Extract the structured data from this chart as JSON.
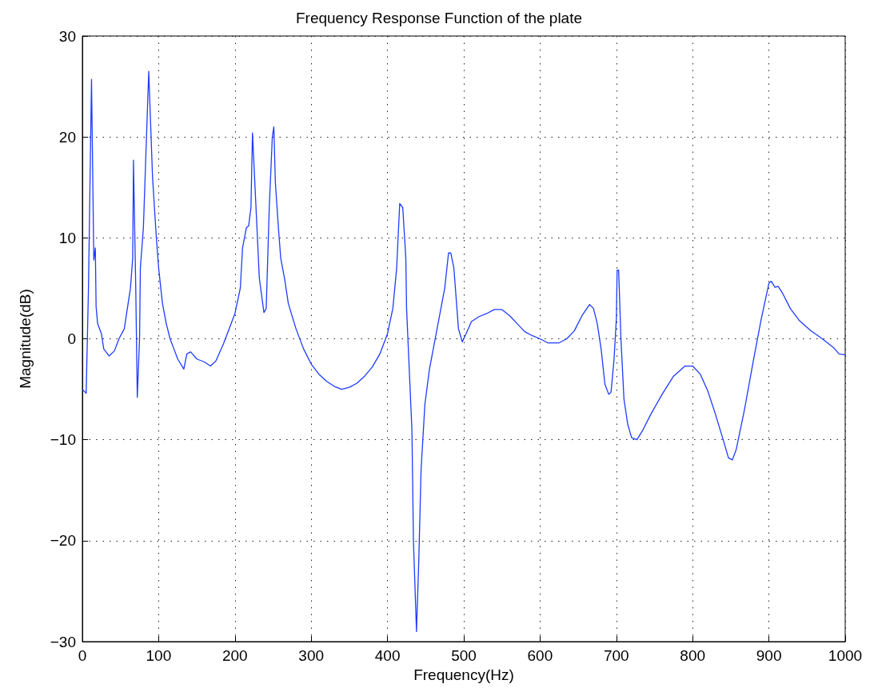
{
  "chart_data": {
    "type": "line",
    "title": "Frequency Response Function of the plate",
    "xlabel": "Frequency(Hz)",
    "ylabel": "Magnitude(dB)",
    "xlim": [
      0,
      1000
    ],
    "xticks": [
      0,
      100,
      200,
      300,
      400,
      500,
      600,
      700,
      800,
      900,
      1000
    ],
    "ylim": [
      -30,
      30
    ],
    "yticks": [
      -30,
      -20,
      -10,
      0,
      10,
      20,
      30
    ],
    "grid": true,
    "line_style": "solid",
    "marker": "none",
    "series": [
      {
        "color": "#1f3bff",
        "x": [
          0,
          5,
          8,
          12,
          15,
          17,
          18,
          20,
          25,
          28,
          35,
          42,
          48,
          55,
          58,
          63,
          66,
          67,
          70,
          72,
          75,
          76,
          80,
          87,
          92,
          97,
          100,
          105,
          110,
          115,
          120,
          125,
          133,
          137,
          142,
          150,
          160,
          168,
          175,
          185,
          195,
          200,
          207,
          210,
          215,
          218,
          221,
          223,
          227,
          232,
          238,
          241,
          245,
          249,
          251,
          253,
          257,
          260,
          265,
          270,
          280,
          290,
          300,
          310,
          320,
          330,
          340,
          350,
          360,
          370,
          380,
          390,
          400,
          407,
          412,
          416,
          420,
          424,
          425,
          432,
          434,
          438,
          441,
          444,
          449,
          455,
          460,
          465,
          470,
          475,
          480,
          483,
          487,
          490,
          493,
          498,
          503,
          510,
          520,
          530,
          540,
          550,
          560,
          570,
          580,
          590,
          600,
          610,
          625,
          635,
          645,
          655,
          665,
          670,
          675,
          680,
          685,
          690,
          693,
          697,
          700,
          701,
          703,
          706,
          710,
          715,
          720,
          727,
          735,
          745,
          760,
          775,
          790,
          800,
          810,
          820,
          830,
          840,
          847,
          852,
          857,
          868,
          880,
          890,
          900,
          903,
          908,
          912,
          918,
          928,
          940,
          955,
          970,
          985,
          992,
          1000
        ],
        "values": [
          -5,
          -5.4,
          5,
          25.7,
          7.8,
          9,
          3.2,
          1.5,
          0.5,
          -1,
          -1.7,
          -1.2,
          0,
          1,
          2.5,
          5,
          8,
          17.7,
          5,
          -5.8,
          0,
          7,
          11,
          26.5,
          16,
          10,
          7,
          3.5,
          1.5,
          0,
          -1,
          -2,
          -3,
          -1.5,
          -1.3,
          -2,
          -2.3,
          -2.7,
          -2.2,
          -0.5,
          1.5,
          2.5,
          5,
          9,
          11,
          11.2,
          13,
          20.4,
          14,
          6,
          2.6,
          3,
          13,
          20,
          21,
          15.5,
          11,
          8,
          6,
          3.5,
          1,
          -1,
          -2.5,
          -3.5,
          -4.2,
          -4.7,
          -5,
          -4.8,
          -4.4,
          -3.7,
          -2.8,
          -1.5,
          0.5,
          3,
          7,
          13.4,
          13,
          8,
          3,
          -9,
          -20,
          -29,
          -22,
          -13,
          -6.5,
          -3,
          -1,
          1,
          3,
          5,
          8.5,
          8.5,
          7,
          4,
          1,
          -0.3,
          0.5,
          1.7,
          2.2,
          2.5,
          2.9,
          2.9,
          2.3,
          1.5,
          0.7,
          0.3,
          0,
          -0.4,
          -0.4,
          0,
          0.8,
          2.3,
          3.4,
          3,
          1.5,
          -1,
          -4.5,
          -5.5,
          -5.3,
          -2,
          2,
          6.8,
          6.8,
          0,
          -6,
          -8.5,
          -9.8,
          -10,
          -9,
          -7.5,
          -5.5,
          -3.7,
          -2.7,
          -2.7,
          -3.5,
          -5.2,
          -7.5,
          -10,
          -11.8,
          -12,
          -11,
          -7,
          -2,
          2,
          5.5,
          5.7,
          5.1,
          5.2,
          4.5,
          3,
          1.8,
          0.8,
          0,
          -0.9,
          -1.5,
          -1.6
        ]
      }
    ]
  }
}
